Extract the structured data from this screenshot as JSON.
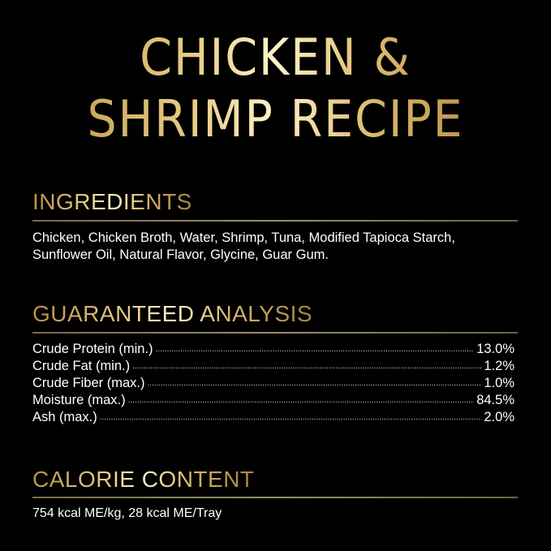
{
  "title": {
    "line1": "CHICKEN &",
    "line2": "SHRIMP RECIPE"
  },
  "ingredients": {
    "heading": "INGREDIENTS",
    "line1": "Chicken, Chicken Broth, Water, Shrimp, Tuna, Modified Tapioca Starch,",
    "line2": "Sunflower Oil, Natural Flavor, Glycine, Guar Gum."
  },
  "analysis": {
    "heading": "GUARANTEED ANALYSIS",
    "rows": [
      {
        "label": "Crude Protein (min.)",
        "value": "13.0%"
      },
      {
        "label": "Crude Fat (min.)",
        "value": "1.2%"
      },
      {
        "label": "Crude Fiber (max.)",
        "value": "1.0%"
      },
      {
        "label": "Moisture (max.)",
        "value": "84.5%"
      },
      {
        "label": "Ash (max.)",
        "value": "2.0%"
      }
    ]
  },
  "calorie": {
    "heading": "CALORIE CONTENT",
    "text": "754 kcal ME/kg, 28 kcal ME/Tray"
  },
  "colors": {
    "background": "#000000",
    "gold": "#d9b76a"
  }
}
